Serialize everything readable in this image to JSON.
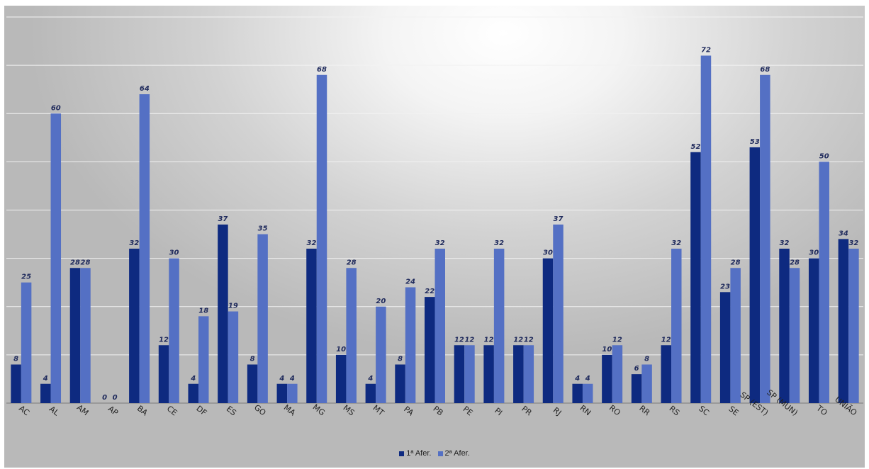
{
  "chart_data": {
    "type": "bar",
    "categories": [
      "AC",
      "AL",
      "AM",
      "AP",
      "BA",
      "CE",
      "DF",
      "ES",
      "GO",
      "MA",
      "MG",
      "MS",
      "MT",
      "PA",
      "PB",
      "PE",
      "PI",
      "PR",
      "RJ",
      "RN",
      "RO",
      "RR",
      "RS",
      "SC",
      "SE",
      "SP (EST)",
      "SP (MUN)",
      "TO",
      "UNIÃO"
    ],
    "series": [
      {
        "name": "1ª Afer.",
        "color": "#0e2a80",
        "values": [
          8,
          4,
          28,
          0,
          32,
          12,
          4,
          37,
          8,
          4,
          32,
          10,
          4,
          8,
          22,
          12,
          12,
          12,
          30,
          4,
          10,
          6,
          12,
          52,
          23,
          53,
          32,
          30,
          34
        ]
      },
      {
        "name": "2ª Afer.",
        "color": "#5470c4",
        "values": [
          25,
          60,
          28,
          0,
          64,
          30,
          18,
          19,
          35,
          4,
          68,
          28,
          20,
          24,
          32,
          12,
          32,
          12,
          37,
          4,
          12,
          8,
          32,
          72,
          28,
          68,
          28,
          50,
          32
        ]
      }
    ],
    "ylim": [
      0,
      80
    ],
    "grid": true,
    "legend_position": "bottom",
    "data_labels": true
  }
}
